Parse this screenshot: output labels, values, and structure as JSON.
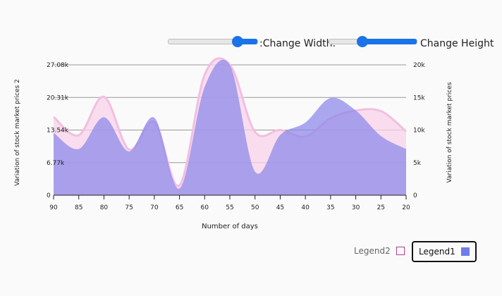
{
  "controls": {
    "width_label": ":Change Width:",
    "height_label": "Change Height",
    "width_value": 0.78,
    "height_value": 0.38
  },
  "colors": {
    "series1_fill": "#8b87ea",
    "series2_fill": "#f8d3ea",
    "series2_line": "#f2bfe0",
    "grid": "#999999",
    "accent": "#1a73e8"
  },
  "chart_data": {
    "type": "area",
    "title": "",
    "xlabel": "Number of days",
    "ylabel_left": "Variation of stock market prices 2",
    "ylabel_right": "Variation of stock market prices",
    "x": [
      90,
      85,
      80,
      75,
      70,
      65,
      60,
      55,
      50,
      45,
      40,
      35,
      30,
      25,
      20
    ],
    "x_ticks": [
      "90",
      "85",
      "80",
      "75",
      "70",
      "65",
      "60",
      "55",
      "50",
      "45",
      "40",
      "35",
      "30",
      "25",
      "20"
    ],
    "y_left_ticks": [
      "0",
      "6.77k",
      "13.54k",
      "20.31k",
      "27.08k"
    ],
    "y_left_range": [
      0,
      27080
    ],
    "y_right_ticks": [
      "0",
      "5k",
      "10k",
      "15k",
      "20k"
    ],
    "y_right_range": [
      0,
      20000
    ],
    "grid": true,
    "legend_position": "bottom-right",
    "series": [
      {
        "name": "Legend1",
        "axis": "left",
        "values": [
          13000,
          9600,
          16200,
          9100,
          16100,
          1400,
          22500,
          27000,
          4900,
          12500,
          15100,
          20200,
          17600,
          12300,
          9600
        ]
      },
      {
        "name": "Legend2",
        "axis": "right",
        "values": [
          12000,
          9200,
          15100,
          7000,
          11200,
          1500,
          18500,
          20000,
          9700,
          10000,
          9000,
          11800,
          13000,
          12900,
          9800
        ]
      }
    ],
    "legend": [
      {
        "name": "Legend2",
        "swatch": "#ffffff",
        "border": "#b03c8c"
      },
      {
        "name": "Legend1",
        "swatch": "#6f7de8",
        "border": "#6f7de8"
      }
    ]
  }
}
